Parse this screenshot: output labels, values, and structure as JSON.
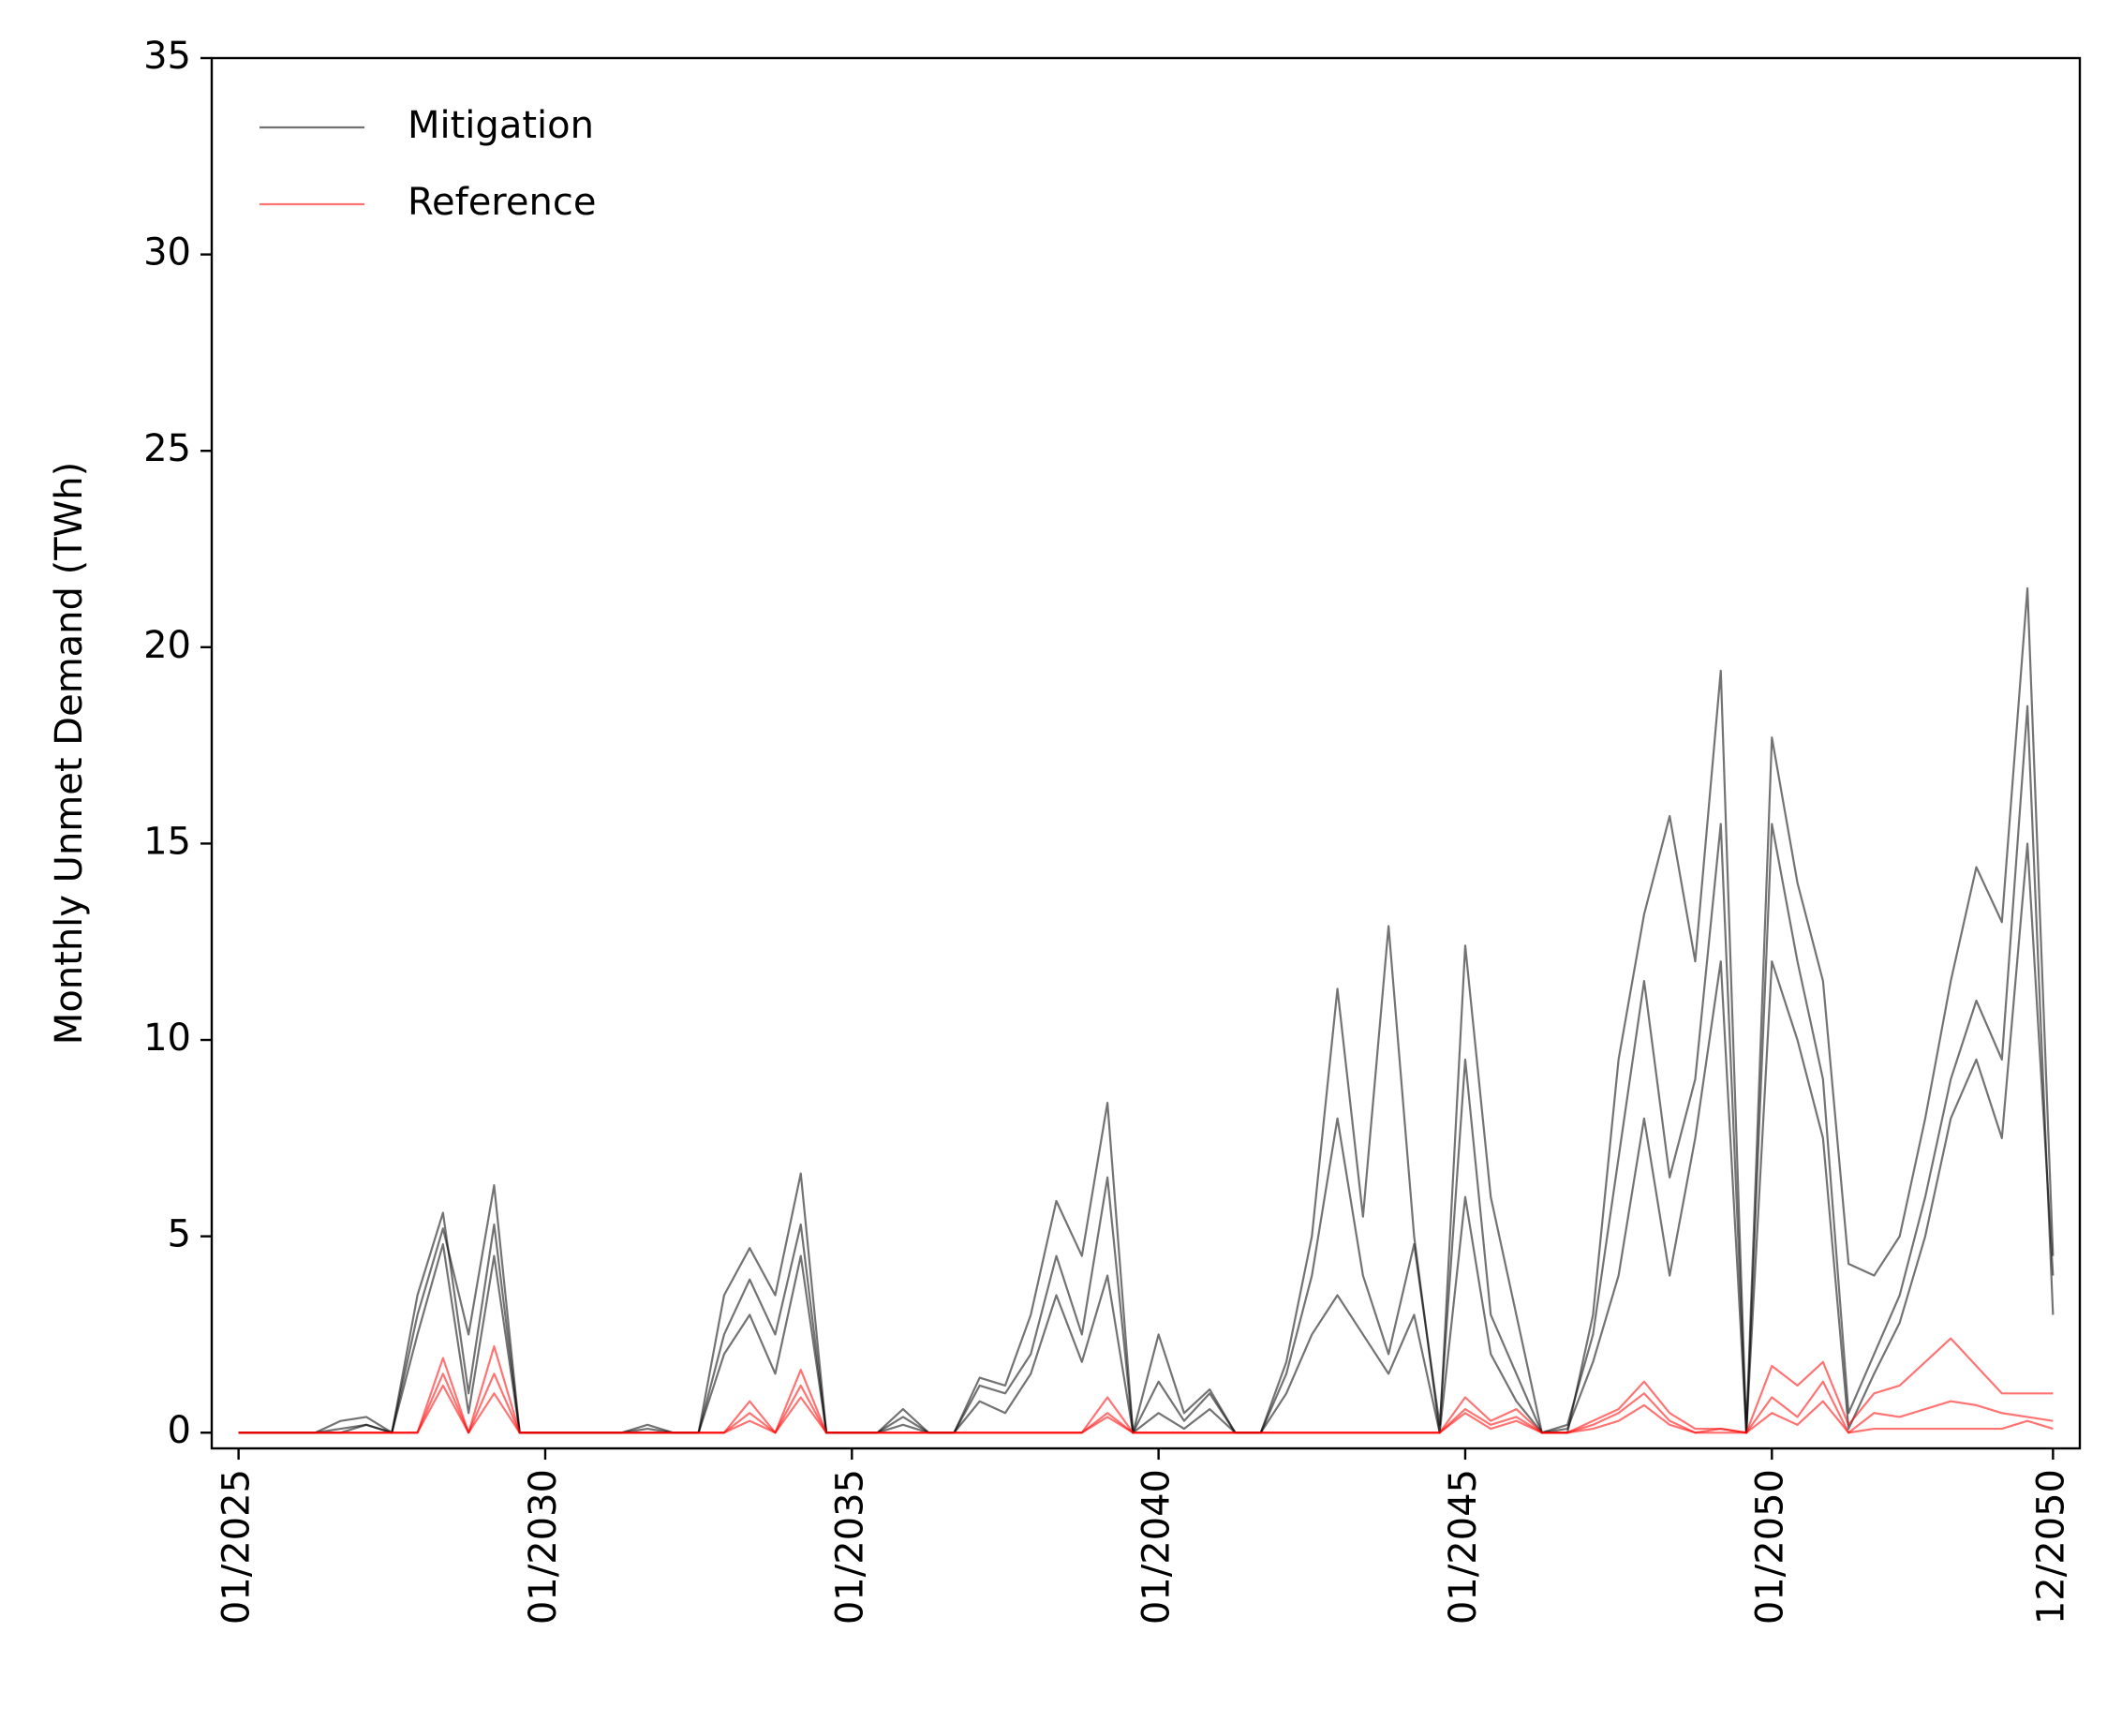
{
  "chart_data": {
    "type": "line",
    "y_label": "Monthly Unmet Demand (TWh)",
    "categories": [
      "01/2025",
      null,
      null,
      null,
      null,
      null,
      null,
      null,
      null,
      null,
      null,
      null,
      "01/2030",
      null,
      null,
      null,
      null,
      null,
      null,
      null,
      null,
      null,
      null,
      null,
      "01/2035",
      null,
      null,
      null,
      null,
      null,
      null,
      null,
      null,
      null,
      null,
      null,
      "01/2040",
      null,
      null,
      null,
      null,
      null,
      null,
      null,
      null,
      null,
      null,
      null,
      "01/2045",
      null,
      null,
      null,
      null,
      null,
      null,
      null,
      null,
      null,
      null,
      null,
      "01/2050",
      null,
      null,
      null,
      null,
      null,
      null,
      null,
      null,
      null,
      null,
      "12/2050"
    ],
    "ylim": [
      -0.4,
      35
    ],
    "yticks": [
      0,
      5,
      10,
      15,
      20,
      25,
      30,
      35
    ],
    "legend": "upper left",
    "series": [
      {
        "name": "Mitigation",
        "color": "#000000",
        "values": [
          [
            0,
            0,
            0,
            0,
            0.3,
            0.4,
            0,
            3.5,
            5.6,
            1.0,
            5.3,
            0,
            0,
            0,
            0,
            0,
            0.2,
            0,
            0,
            2.5,
            3.9,
            2.5,
            5.3,
            0,
            0,
            0,
            0.4,
            0,
            0,
            1.2,
            1.0,
            2.0,
            4.5,
            2.5,
            6.5,
            0,
            1.3,
            0.3,
            1.0,
            0,
            0,
            1.5,
            4.0,
            8.0,
            4.0,
            2.0,
            4.8,
            0.2,
            9.5,
            3.0,
            1.5,
            0,
            0.2,
            2.5,
            7.0,
            11.5,
            6.5,
            9.0,
            15.5,
            0,
            15.5,
            12.0,
            9.0,
            0.5,
            2.0,
            3.5,
            6.0,
            9.0,
            11.0,
            9.5,
            18.5,
            3.0
          ],
          [
            0,
            0,
            0,
            0,
            0,
            0.2,
            0,
            3.0,
            5.2,
            2.5,
            6.3,
            0,
            0,
            0,
            0,
            0,
            0.1,
            0,
            0,
            3.5,
            4.7,
            3.5,
            6.6,
            0,
            0,
            0,
            0.6,
            0,
            0,
            1.4,
            1.2,
            3.0,
            5.9,
            4.5,
            8.4,
            0,
            2.5,
            0.5,
            1.1,
            0,
            0,
            1.8,
            5.0,
            11.3,
            5.5,
            12.9,
            5.0,
            0,
            12.4,
            6.0,
            3.0,
            0,
            0,
            3.0,
            9.5,
            13.2,
            15.7,
            12.0,
            19.4,
            0,
            17.7,
            14.0,
            11.5,
            4.3,
            4.0,
            5.0,
            8.0,
            11.5,
            14.4,
            13.0,
            21.5,
            4.5
          ],
          [
            0,
            0,
            0,
            0,
            0.1,
            0.2,
            0,
            2.5,
            4.8,
            0.5,
            4.5,
            0,
            0,
            0,
            0,
            0,
            0,
            0,
            0,
            2.0,
            3.0,
            1.5,
            4.5,
            0,
            0,
            0,
            0.2,
            0,
            0,
            0.8,
            0.5,
            1.5,
            3.5,
            1.8,
            4.0,
            0,
            0.5,
            0.1,
            0.6,
            0,
            0,
            1.0,
            2.5,
            3.5,
            2.5,
            1.5,
            3.0,
            0,
            6.0,
            2.0,
            0.8,
            0,
            0.1,
            1.8,
            4.0,
            8.0,
            4.0,
            7.5,
            12.0,
            0,
            12.0,
            10.0,
            7.5,
            0.1,
            1.5,
            2.8,
            5.0,
            8.0,
            9.5,
            7.5,
            15.0,
            4.0
          ]
        ]
      },
      {
        "name": "Reference",
        "color": "#ff0000",
        "values": [
          [
            0,
            0,
            0,
            0,
            0,
            0,
            0,
            0,
            1.9,
            0,
            1.5,
            0,
            0,
            0,
            0,
            0,
            0,
            0,
            0,
            0,
            0.8,
            0,
            1.6,
            0,
            0,
            0,
            0,
            0,
            0,
            0,
            0,
            0,
            0,
            0,
            0.9,
            0,
            0,
            0,
            0,
            0,
            0,
            0,
            0,
            0,
            0,
            0,
            0,
            0,
            0.9,
            0.3,
            0.6,
            0,
            0,
            0.2,
            0.5,
            1.0,
            0.3,
            0,
            0.1,
            0,
            0.9,
            0.4,
            1.3,
            0,
            0.1,
            0.1,
            0.1,
            0.1,
            0.1,
            0.1,
            0.3,
            0.1
          ],
          [
            0,
            0,
            0,
            0,
            0,
            0,
            0,
            0,
            1.5,
            0,
            2.2,
            0,
            0,
            0,
            0,
            0,
            0,
            0,
            0,
            0,
            0.5,
            0,
            1.2,
            0,
            0,
            0,
            0,
            0,
            0,
            0,
            0,
            0,
            0,
            0,
            0.5,
            0,
            0,
            0,
            0,
            0,
            0,
            0,
            0,
            0,
            0,
            0,
            0,
            0,
            0.6,
            0.2,
            0.4,
            0,
            0,
            0.3,
            0.6,
            1.3,
            0.5,
            0.1,
            0.1,
            0,
            1.7,
            1.2,
            1.8,
            0.2,
            1.0,
            1.2,
            1.8,
            2.4,
            1.7,
            1.0,
            1.0,
            1.0
          ],
          [
            0,
            0,
            0,
            0,
            0,
            0,
            0,
            0,
            1.2,
            0,
            1.0,
            0,
            0,
            0,
            0,
            0,
            0,
            0,
            0,
            0,
            0.3,
            0,
            0.9,
            0,
            0,
            0,
            0,
            0,
            0,
            0,
            0,
            0,
            0,
            0,
            0.4,
            0,
            0,
            0,
            0,
            0,
            0,
            0,
            0,
            0,
            0,
            0,
            0,
            0,
            0.5,
            0.1,
            0.3,
            0,
            0,
            0.1,
            0.3,
            0.7,
            0.2,
            0,
            0,
            0,
            0.5,
            0.2,
            0.8,
            0,
            0.5,
            0.4,
            0.6,
            0.8,
            0.7,
            0.5,
            0.4,
            0.3
          ]
        ]
      }
    ]
  }
}
